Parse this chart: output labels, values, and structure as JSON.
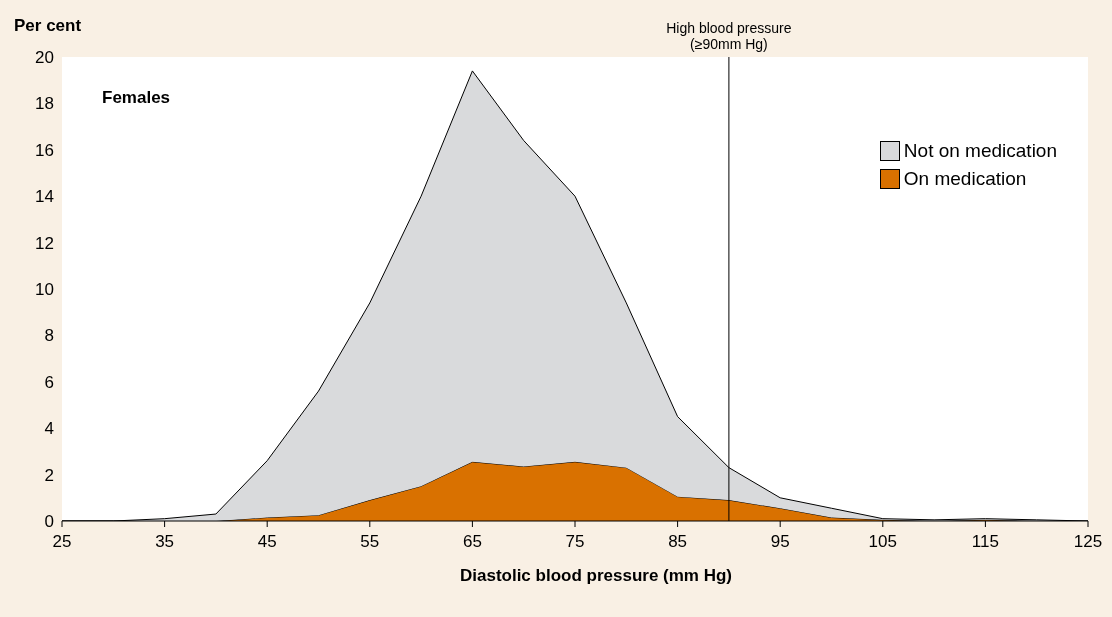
{
  "chart_data": {
    "type": "area",
    "stacked": true,
    "ylabel": "Per cent",
    "xlabel": "Diastolic blood pressure (mm Hg)",
    "x": [
      25,
      30,
      35,
      40,
      45,
      50,
      55,
      60,
      65,
      70,
      75,
      80,
      85,
      90,
      95,
      100,
      105,
      110,
      115,
      120,
      125
    ],
    "series": [
      {
        "name": "On medication",
        "color": "#d97100",
        "values": [
          0,
          0,
          0,
          0,
          0.15,
          0.25,
          0.9,
          1.5,
          2.55,
          2.35,
          2.55,
          2.3,
          1.05,
          0.9,
          0.55,
          0.15,
          0.05,
          0,
          0.05,
          0,
          0
        ]
      },
      {
        "name": "Not on medication",
        "color": "#d9dadc",
        "values": [
          0,
          0,
          0.1,
          0.3,
          2.45,
          5.35,
          8.5,
          12.5,
          16.85,
          14.05,
          11.45,
          7.1,
          3.45,
          1.4,
          0.45,
          0.4,
          0.05,
          0.05,
          0.05,
          0.05,
          0
        ]
      }
    ],
    "xlim": [
      25,
      125
    ],
    "xticks": [
      25,
      35,
      45,
      55,
      65,
      75,
      85,
      95,
      105,
      115,
      125
    ],
    "ylim": [
      0,
      20
    ],
    "yticks": [
      0,
      2,
      4,
      6,
      8,
      10,
      12,
      14,
      16,
      18,
      20
    ],
    "ref_lines": [
      {
        "axis": "x",
        "value": 90,
        "label": "High blood pressure\n(≥90mm Hg)",
        "color": "#000000"
      }
    ],
    "annotations": [
      "Females"
    ],
    "legend": "top right",
    "grid": false
  }
}
